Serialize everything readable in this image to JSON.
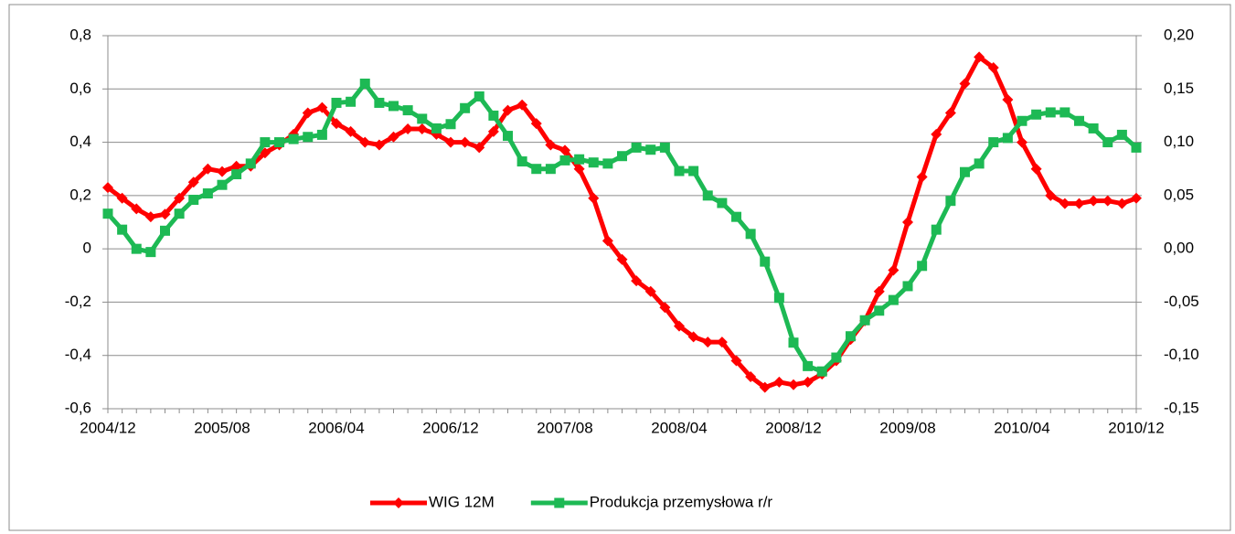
{
  "chart_data": {
    "type": "line",
    "categories": [
      "2004/12",
      null,
      null,
      null,
      null,
      null,
      null,
      null,
      "2005/08",
      null,
      null,
      null,
      null,
      null,
      null,
      null,
      "2006/04",
      null,
      null,
      null,
      null,
      null,
      null,
      null,
      "2006/12",
      null,
      null,
      null,
      null,
      null,
      null,
      null,
      "2007/08",
      null,
      null,
      null,
      null,
      null,
      null,
      null,
      "2008/04",
      null,
      null,
      null,
      null,
      null,
      null,
      null,
      "2008/12",
      null,
      null,
      null,
      null,
      null,
      null,
      null,
      "2009/08",
      null,
      null,
      null,
      null,
      null,
      null,
      null,
      "2010/04",
      null,
      null,
      null,
      null,
      null,
      null,
      null,
      "2010/12"
    ],
    "series": [
      {
        "name": "WIG 12M",
        "color": "#ff0000",
        "values": [
          0.23,
          0.19,
          0.15,
          0.12,
          0.13,
          0.19,
          0.25,
          0.3,
          0.29,
          0.31,
          0.31,
          0.36,
          0.39,
          0.43,
          0.51,
          0.53,
          0.47,
          0.44,
          0.4,
          0.39,
          0.42,
          0.45,
          0.45,
          0.43,
          0.4,
          0.4,
          0.38,
          0.44,
          0.52,
          0.54,
          0.47,
          0.39,
          0.37,
          0.3,
          0.19,
          0.03,
          -0.04,
          -0.12,
          -0.16,
          -0.22,
          -0.29,
          -0.33,
          -0.35,
          -0.35,
          -0.42,
          -0.48,
          -0.52,
          -0.5,
          -0.51,
          -0.5,
          -0.47,
          -0.42,
          -0.34,
          -0.27,
          -0.16,
          -0.08,
          0.1,
          0.27,
          0.43,
          0.51,
          0.62,
          0.72,
          0.68,
          0.56,
          0.4,
          0.3,
          0.2,
          0.17,
          0.17,
          0.18,
          0.18,
          0.17,
          0.19
        ]
      },
      {
        "name": "Produkcja przemysłowa r/r",
        "color": "#1db954",
        "axis": "y2",
        "values": [
          0.033,
          0.018,
          0.0,
          -0.003,
          0.017,
          0.033,
          0.046,
          0.052,
          0.06,
          0.07,
          0.08,
          0.1,
          0.1,
          0.103,
          0.105,
          0.107,
          0.137,
          0.138,
          0.155,
          0.137,
          0.134,
          0.13,
          0.122,
          0.113,
          0.117,
          0.132,
          0.143,
          0.125,
          0.106,
          0.082,
          0.075,
          0.075,
          0.083,
          0.084,
          0.081,
          0.08,
          0.087,
          0.095,
          0.093,
          0.095,
          0.073,
          0.073,
          0.05,
          0.043,
          0.03,
          0.014,
          -0.012,
          -0.046,
          -0.088,
          -0.11,
          -0.115,
          -0.102,
          -0.082,
          -0.067,
          -0.058,
          -0.048,
          -0.035,
          -0.016,
          0.018,
          0.045,
          0.072,
          0.08,
          0.1,
          0.104,
          0.12,
          0.126,
          0.128,
          0.128,
          0.12,
          0.113,
          0.1,
          0.107,
          0.095
        ]
      }
    ],
    "ylim": [
      -0.6,
      0.8
    ],
    "yticks": [
      {
        "value": -0.6,
        "label": "-0,6"
      },
      {
        "value": -0.4,
        "label": "-0,4"
      },
      {
        "value": -0.2,
        "label": "-0,2"
      },
      0,
      {
        "value": 0.2,
        "label": "0,2"
      },
      {
        "value": 0.4,
        "label": "0,4"
      },
      {
        "value": 0.6,
        "label": "0,6"
      },
      {
        "value": 0.8,
        "label": "0,8"
      }
    ],
    "y2lim": [
      -0.15,
      0.2
    ],
    "y2ticks": [
      {
        "value": -0.15,
        "label": "-0,15"
      },
      {
        "value": -0.1,
        "label": "-0,10"
      },
      {
        "value": -0.05,
        "label": "-0,05"
      },
      {
        "value": 0,
        "label": "0,00"
      },
      {
        "value": 0.05,
        "label": "0,05"
      },
      {
        "value": 0.1,
        "label": "0,10"
      },
      {
        "value": 0.15,
        "label": "0,15"
      },
      {
        "value": 0.2,
        "label": "0,20"
      }
    ],
    "grid": true,
    "legend": "bottom"
  }
}
